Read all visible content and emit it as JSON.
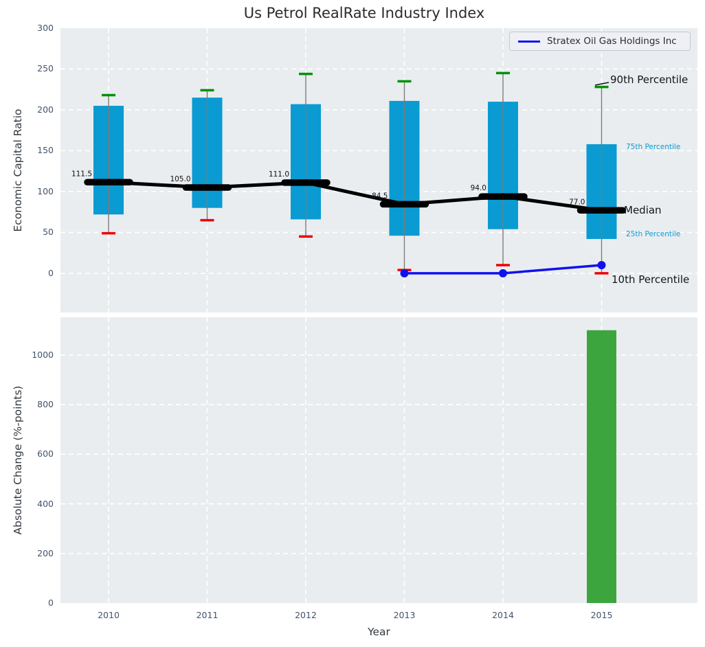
{
  "title": "Us Petrol RealRate Industry Index",
  "chart_data": [
    {
      "type": "box",
      "title": "Us Petrol RealRate Industry Index",
      "ylabel": "Economic Capital Ratio",
      "categories": [
        "2010",
        "2011",
        "2012",
        "2013",
        "2014",
        "2015"
      ],
      "ylim": [
        -48,
        300
      ],
      "yticks": [
        0,
        50,
        100,
        150,
        200,
        250,
        300
      ],
      "grid": true,
      "legend_position": "upper right",
      "colors": {
        "box_fill": "#0a9bd2",
        "whisker_line": "#7b7b7b",
        "cap_high": "#009104",
        "cap_low": "#ee0000",
        "median": "#000000",
        "series": "#1111ee",
        "plot_bg": "#e9edf0",
        "grid": "#ffffff",
        "small_annotation": "#0a9bd2"
      },
      "boxes": [
        {
          "category": "2010",
          "p90": 218,
          "p75": 205,
          "median": 111.5,
          "p25": 72,
          "p10": 49
        },
        {
          "category": "2011",
          "p90": 224,
          "p75": 215,
          "median": 105.0,
          "p25": 80,
          "p10": 65
        },
        {
          "category": "2012",
          "p90": 244,
          "p75": 207,
          "median": 111.0,
          "p25": 66,
          "p10": 45
        },
        {
          "category": "2013",
          "p90": 235,
          "p75": 211,
          "median": 84.5,
          "p25": 46,
          "p10": 4
        },
        {
          "category": "2014",
          "p90": 245,
          "p75": 210,
          "median": 94.0,
          "p25": 54,
          "p10": 10
        },
        {
          "category": "2015",
          "p90": 228,
          "p75": 158,
          "median": 77.0,
          "p25": 42,
          "p10": 0
        }
      ],
      "median_labels": [
        "111.5",
        "105.0",
        "111.0",
        "84.5",
        "94.0",
        "77.0"
      ],
      "series": [
        {
          "name": "Stratex Oil Gas Holdings Inc",
          "x": [
            "2013",
            "2014",
            "2015"
          ],
          "values": [
            0,
            0,
            10
          ],
          "color": "#1111ee",
          "marker": "circle"
        }
      ],
      "legend": {
        "entries": [
          {
            "label": "Stratex Oil Gas Holdings Inc",
            "color": "#1111ee"
          }
        ]
      },
      "annotations": [
        {
          "label": "90th Percentile",
          "style": "large"
        },
        {
          "label": "75th Percentile",
          "style": "small"
        },
        {
          "label": "Median",
          "style": "large"
        },
        {
          "label": "25th Percentile",
          "style": "small"
        },
        {
          "label": "10th Percentile",
          "style": "large"
        }
      ]
    },
    {
      "type": "bar",
      "xlabel": "Year",
      "ylabel": "Absolute Change (%-points)",
      "categories": [
        "2010",
        "2011",
        "2012",
        "2013",
        "2014",
        "2015"
      ],
      "values": [
        0,
        0,
        0,
        0,
        0,
        1100
      ],
      "yticks": [
        0,
        200,
        400,
        600,
        800,
        1000
      ],
      "ylim": [
        0,
        1152
      ],
      "grid": true,
      "bar_color": "#3da53d"
    }
  ]
}
